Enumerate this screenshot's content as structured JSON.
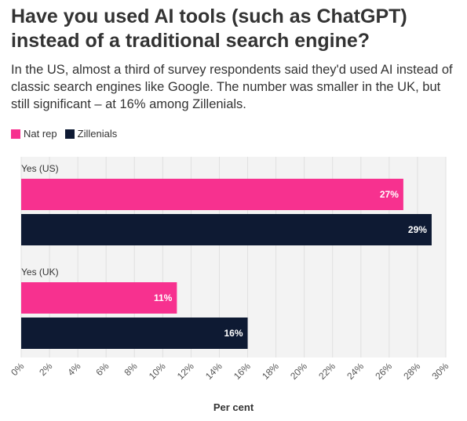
{
  "chart_data": {
    "type": "bar",
    "orientation": "horizontal",
    "title": "Have you used AI tools (such as ChatGPT) instead of a traditional search engine?",
    "subtitle": "In the US, almost a third of survey respondents said they'd used AI instead of classic search engines like Google. The number was smaller in the UK, but still significant – at 16% among Zillenials.",
    "categories": [
      "Yes (US)",
      "Yes (UK)"
    ],
    "series": [
      {
        "name": "Nat rep",
        "values": [
          27,
          11
        ],
        "labels": [
          "27%",
          "11%"
        ],
        "color": "#f7318f"
      },
      {
        "name": "Zillenials",
        "values": [
          29,
          16
        ],
        "labels": [
          "29%",
          "16%"
        ],
        "color": "#0e1a33"
      }
    ],
    "xlabel": "Per cent",
    "ylabel": "",
    "xlim": [
      0,
      30
    ],
    "ticks": [
      0,
      2,
      4,
      6,
      8,
      10,
      12,
      14,
      16,
      18,
      20,
      22,
      24,
      26,
      28,
      30
    ],
    "tick_labels": [
      "0%",
      "2%",
      "4%",
      "6%",
      "8%",
      "10%",
      "12%",
      "14%",
      "16%",
      "18%",
      "20%",
      "22%",
      "24%",
      "26%",
      "28%",
      "30%"
    ],
    "grid": true,
    "legend": "top-left",
    "background": "#ffffff",
    "grid_color": "#e0e0e0"
  }
}
